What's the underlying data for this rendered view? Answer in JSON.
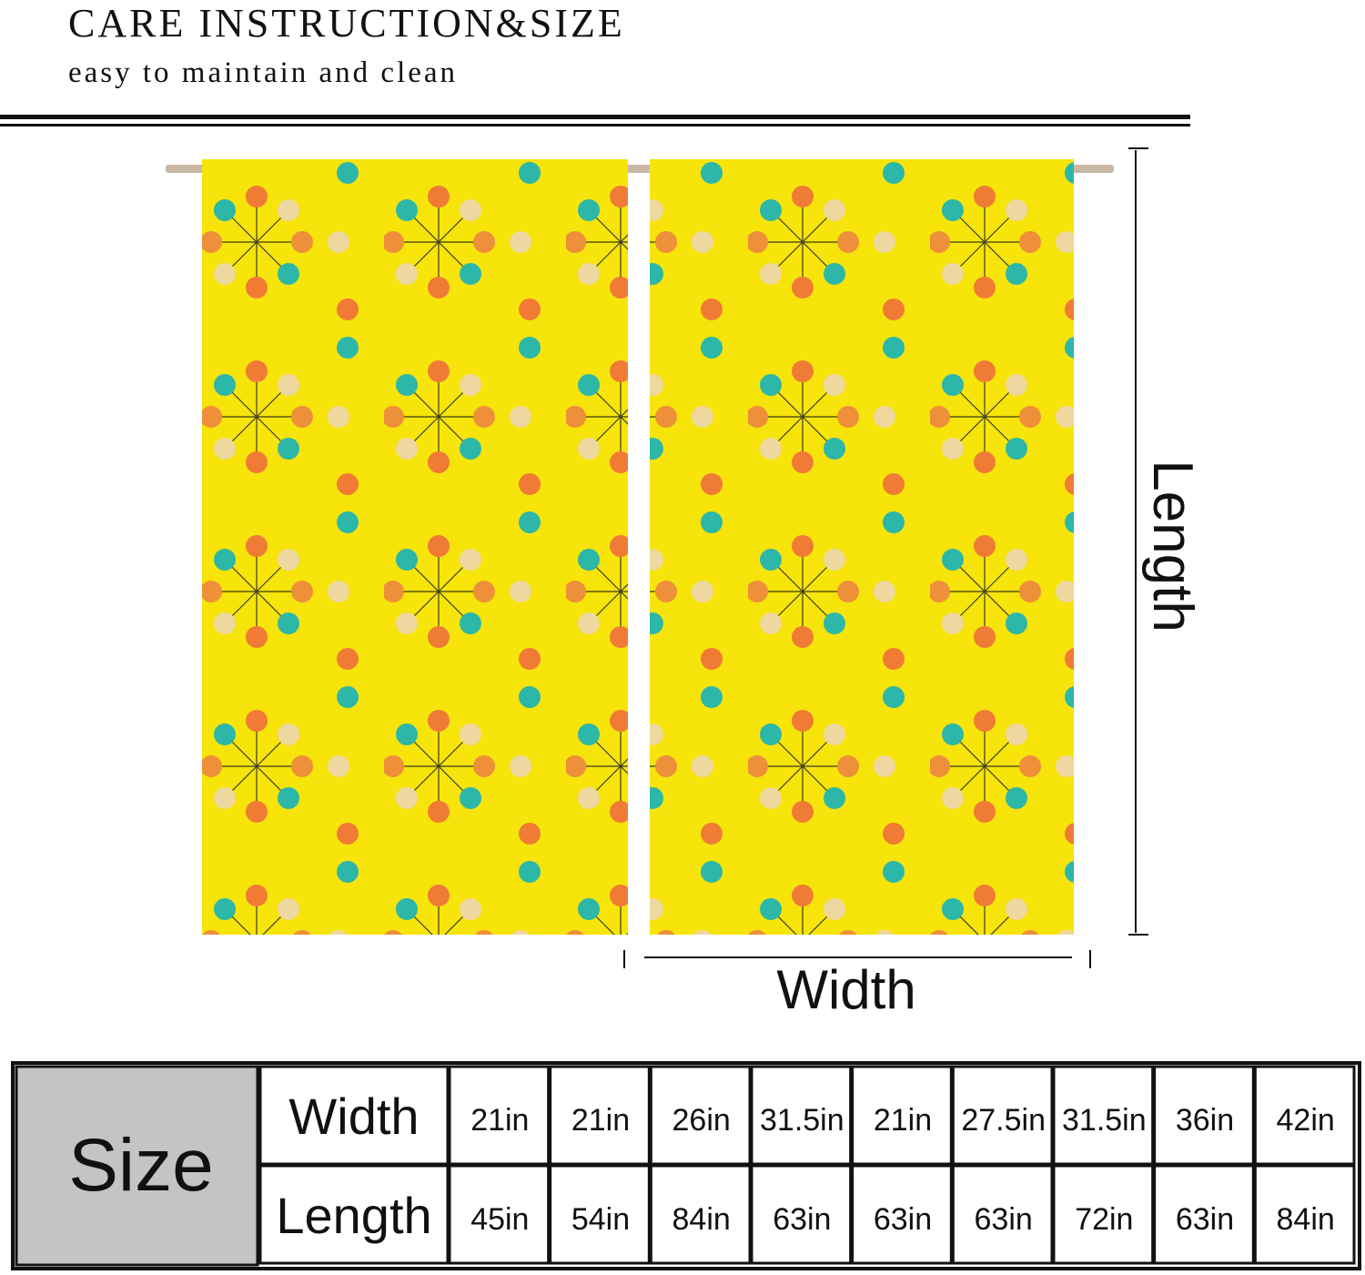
{
  "header": {
    "title": "CARE INSTRUCTION&SIZE",
    "subtitle": "easy to maintain and clean"
  },
  "dimensions": {
    "length": "Length",
    "width": "Width"
  },
  "table": {
    "title": "Size",
    "rows": [
      {
        "label": "Width",
        "cells": [
          "21in",
          "21in",
          "26in",
          "31.5in",
          "21in",
          "27.5in",
          "31.5in",
          "36in",
          "42in"
        ]
      },
      {
        "label": "Length",
        "cells": [
          "45in",
          "54in",
          "84in",
          "63in",
          "63in",
          "63in",
          "72in",
          "63in",
          "84in"
        ]
      }
    ]
  }
}
